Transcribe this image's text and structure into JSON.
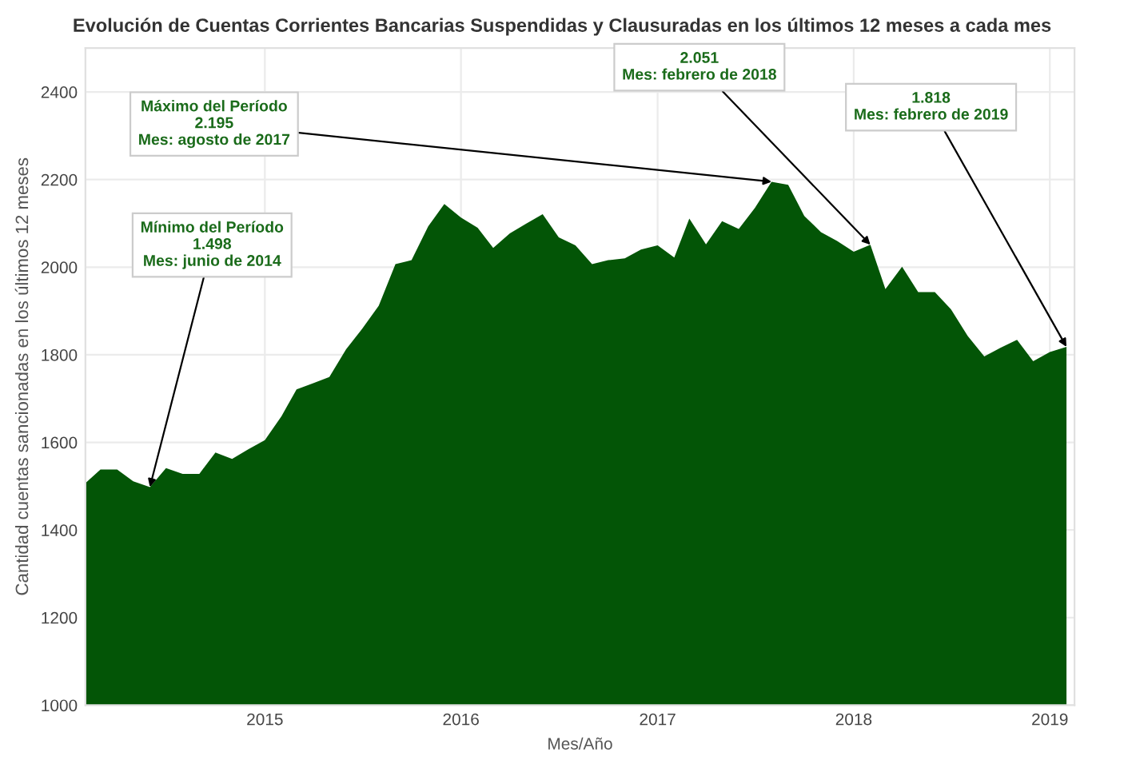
{
  "chart_data": {
    "type": "area",
    "title": "Evolución de Cuentas Corrientes Bancarias Suspendidas y Clausuradas en los últimos 12 meses a cada mes",
    "xlabel": "Mes/Año",
    "ylabel": "Cantidad cuentas sancionadas en los últimos 12 meses",
    "x": [
      "2014-02",
      "2014-03",
      "2014-04",
      "2014-05",
      "2014-06",
      "2014-07",
      "2014-08",
      "2014-09",
      "2014-10",
      "2014-11",
      "2014-12",
      "2015-01",
      "2015-02",
      "2015-03",
      "2015-04",
      "2015-05",
      "2015-06",
      "2015-07",
      "2015-08",
      "2015-09",
      "2015-10",
      "2015-11",
      "2015-12",
      "2016-01",
      "2016-02",
      "2016-03",
      "2016-04",
      "2016-05",
      "2016-06",
      "2016-07",
      "2016-08",
      "2016-09",
      "2016-10",
      "2016-11",
      "2016-12",
      "2017-01",
      "2017-02",
      "2017-03",
      "2017-04",
      "2017-05",
      "2017-06",
      "2017-07",
      "2017-08",
      "2017-09",
      "2017-10",
      "2017-11",
      "2017-12",
      "2018-01",
      "2018-02",
      "2018-03",
      "2018-04",
      "2018-05",
      "2018-06",
      "2018-07",
      "2018-08",
      "2018-09",
      "2018-10",
      "2018-11",
      "2018-12",
      "2019-01",
      "2019-02"
    ],
    "series": [
      {
        "color": "#035506",
        "values": [
          1507,
          1538,
          1538,
          1511,
          1498,
          1541,
          1528,
          1528,
          1577,
          1562,
          1584,
          1605,
          1660,
          1721,
          1735,
          1749,
          1812,
          1859,
          1912,
          2007,
          2016,
          2093,
          2144,
          2113,
          2090,
          2044,
          2077,
          2099,
          2121,
          2068,
          2050,
          2007,
          2016,
          2020,
          2040,
          2050,
          2022,
          2111,
          2052,
          2105,
          2087,
          2135,
          2195,
          2188,
          2117,
          2080,
          2060,
          2035,
          2051,
          1950,
          2001,
          1943,
          1943,
          1904,
          1843,
          1796,
          1816,
          1834,
          1785,
          1806,
          1818
        ]
      }
    ],
    "xlim": [
      "2014-02",
      "2019-02-16"
    ],
    "xticks": [
      {
        "value": "2015-01",
        "label": "2015"
      },
      {
        "value": "2016-01",
        "label": "2016"
      },
      {
        "value": "2017-01",
        "label": "2017"
      },
      {
        "value": "2018-01",
        "label": "2018"
      },
      {
        "value": "2019-01",
        "label": "2019"
      }
    ],
    "ylim": [
      1000,
      2500
    ],
    "yticks": [
      1000,
      1200,
      1400,
      1600,
      1800,
      2000,
      2200,
      2400
    ],
    "grid": true,
    "annotations": [
      {
        "text": "Mínimo del Período\n1.498\nMes: junio de 2014",
        "x": "2014-06",
        "y": 1498
      },
      {
        "text": "Máximo del Período\n2.195\nMes: agosto de 2017",
        "x": "2017-08",
        "y": 2195
      },
      {
        "text": "2.051\nMes: febrero de 2018",
        "x": "2018-02",
        "y": 2051
      },
      {
        "text": "1.818\nMes: febrero de 2019",
        "x": "2019-02",
        "y": 1818
      }
    ]
  }
}
